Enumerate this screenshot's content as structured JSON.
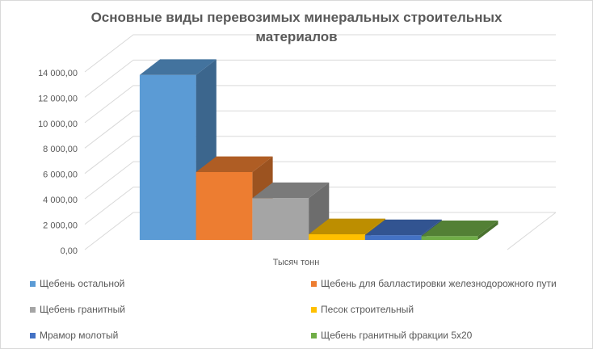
{
  "chart_data": {
    "type": "bar",
    "style": "3d-column",
    "title": "Основные виды перевозимых минеральных строительных материалов",
    "categories": [
      "Тысяч тонн"
    ],
    "series": [
      {
        "name": "Щебень остальной",
        "values": [
          13000
        ],
        "color": "#5B9BD5"
      },
      {
        "name": "Щебень для балластировки железнодорожного пути",
        "values": [
          5350
        ],
        "color": "#ED7D31"
      },
      {
        "name": "Щебень гранитный",
        "values": [
          3300
        ],
        "color": "#A5A5A5"
      },
      {
        "name": "Песок строительный",
        "values": [
          450
        ],
        "color": "#FFC000"
      },
      {
        "name": "Мрамор молотый",
        "values": [
          380
        ],
        "color": "#4472C4"
      },
      {
        "name": "Щебень гранитный фракции 5x20",
        "values": [
          300
        ],
        "color": "#70AD47"
      }
    ],
    "ylim": [
      0,
      14000
    ],
    "yticks": [
      {
        "value": 0,
        "label": "0,00"
      },
      {
        "value": 2000,
        "label": "2 000,00"
      },
      {
        "value": 4000,
        "label": "4 000,00"
      },
      {
        "value": 6000,
        "label": "6 000,00"
      },
      {
        "value": 8000,
        "label": "8 000,00"
      },
      {
        "value": 10000,
        "label": "10 000,00"
      },
      {
        "value": 12000,
        "label": "12 000,00"
      },
      {
        "value": 14000,
        "label": "14 000,00"
      }
    ],
    "grid": true,
    "grid_color": "#D9D9D9",
    "text_color": "#595959",
    "legend": {
      "position": "bottom"
    }
  }
}
